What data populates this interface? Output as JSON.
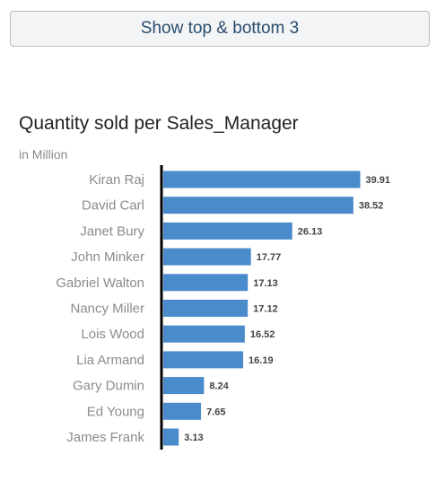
{
  "toolbar": {
    "button_label": "Show top & bottom 3"
  },
  "chart_data": {
    "type": "bar",
    "orientation": "horizontal",
    "title": "Quantity sold per Sales_Manager",
    "subtitle": "in Million",
    "categories": [
      "Kiran Raj",
      "David Carl",
      "Janet Bury",
      "John Minker",
      "Gabriel Walton",
      "Nancy Miller",
      "Lois Wood",
      "Lia Armand",
      "Gary Dumin",
      "Ed Young",
      "James Frank"
    ],
    "values": [
      39.91,
      38.52,
      26.13,
      17.77,
      17.13,
      17.12,
      16.52,
      16.19,
      8.24,
      7.65,
      3.13
    ],
    "value_labels": [
      "39.91",
      "38.52",
      "26.13",
      "17.77",
      "17.13",
      "17.12",
      "16.52",
      "16.19",
      "8.24",
      "7.65",
      "3.13"
    ],
    "xlim": [
      0,
      40
    ],
    "grid": false,
    "legend": "none",
    "bar_color": "#4a8bcb",
    "axis_color": "#000000"
  }
}
